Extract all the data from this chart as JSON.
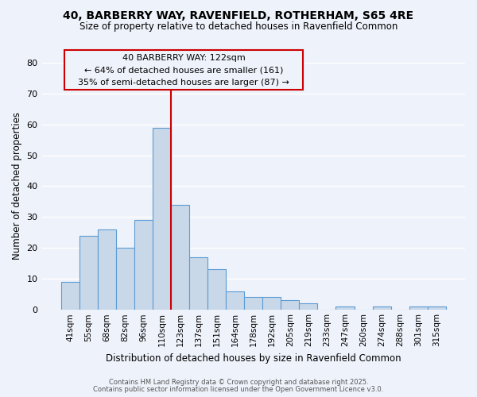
{
  "title": "40, BARBERRY WAY, RAVENFIELD, ROTHERHAM, S65 4RE",
  "subtitle": "Size of property relative to detached houses in Ravenfield Common",
  "xlabel": "Distribution of detached houses by size in Ravenfield Common",
  "ylabel": "Number of detached properties",
  "bar_labels": [
    "41sqm",
    "55sqm",
    "68sqm",
    "82sqm",
    "96sqm",
    "110sqm",
    "123sqm",
    "137sqm",
    "151sqm",
    "164sqm",
    "178sqm",
    "192sqm",
    "205sqm",
    "219sqm",
    "233sqm",
    "247sqm",
    "260sqm",
    "274sqm",
    "288sqm",
    "301sqm",
    "315sqm"
  ],
  "bar_values": [
    9,
    24,
    26,
    20,
    29,
    59,
    34,
    17,
    13,
    6,
    4,
    4,
    3,
    2,
    0,
    1,
    0,
    1,
    0,
    1,
    1
  ],
  "bar_color": "#c8d8e8",
  "bar_edge_color": "#5b9bd5",
  "vline_index": 5.5,
  "vline_color": "#cc0000",
  "annotation_title": "40 BARBERRY WAY: 122sqm",
  "annotation_line1": "← 64% of detached houses are smaller (161)",
  "annotation_line2": "35% of semi-detached houses are larger (87) →",
  "annotation_box_color": "#cc0000",
  "ylim": [
    0,
    80
  ],
  "yticks": [
    0,
    10,
    20,
    30,
    40,
    50,
    60,
    70,
    80
  ],
  "footer1": "Contains HM Land Registry data © Crown copyright and database right 2025.",
  "footer2": "Contains public sector information licensed under the Open Government Licence v3.0.",
  "bg_color": "#eef2fa",
  "grid_color": "#ffffff"
}
